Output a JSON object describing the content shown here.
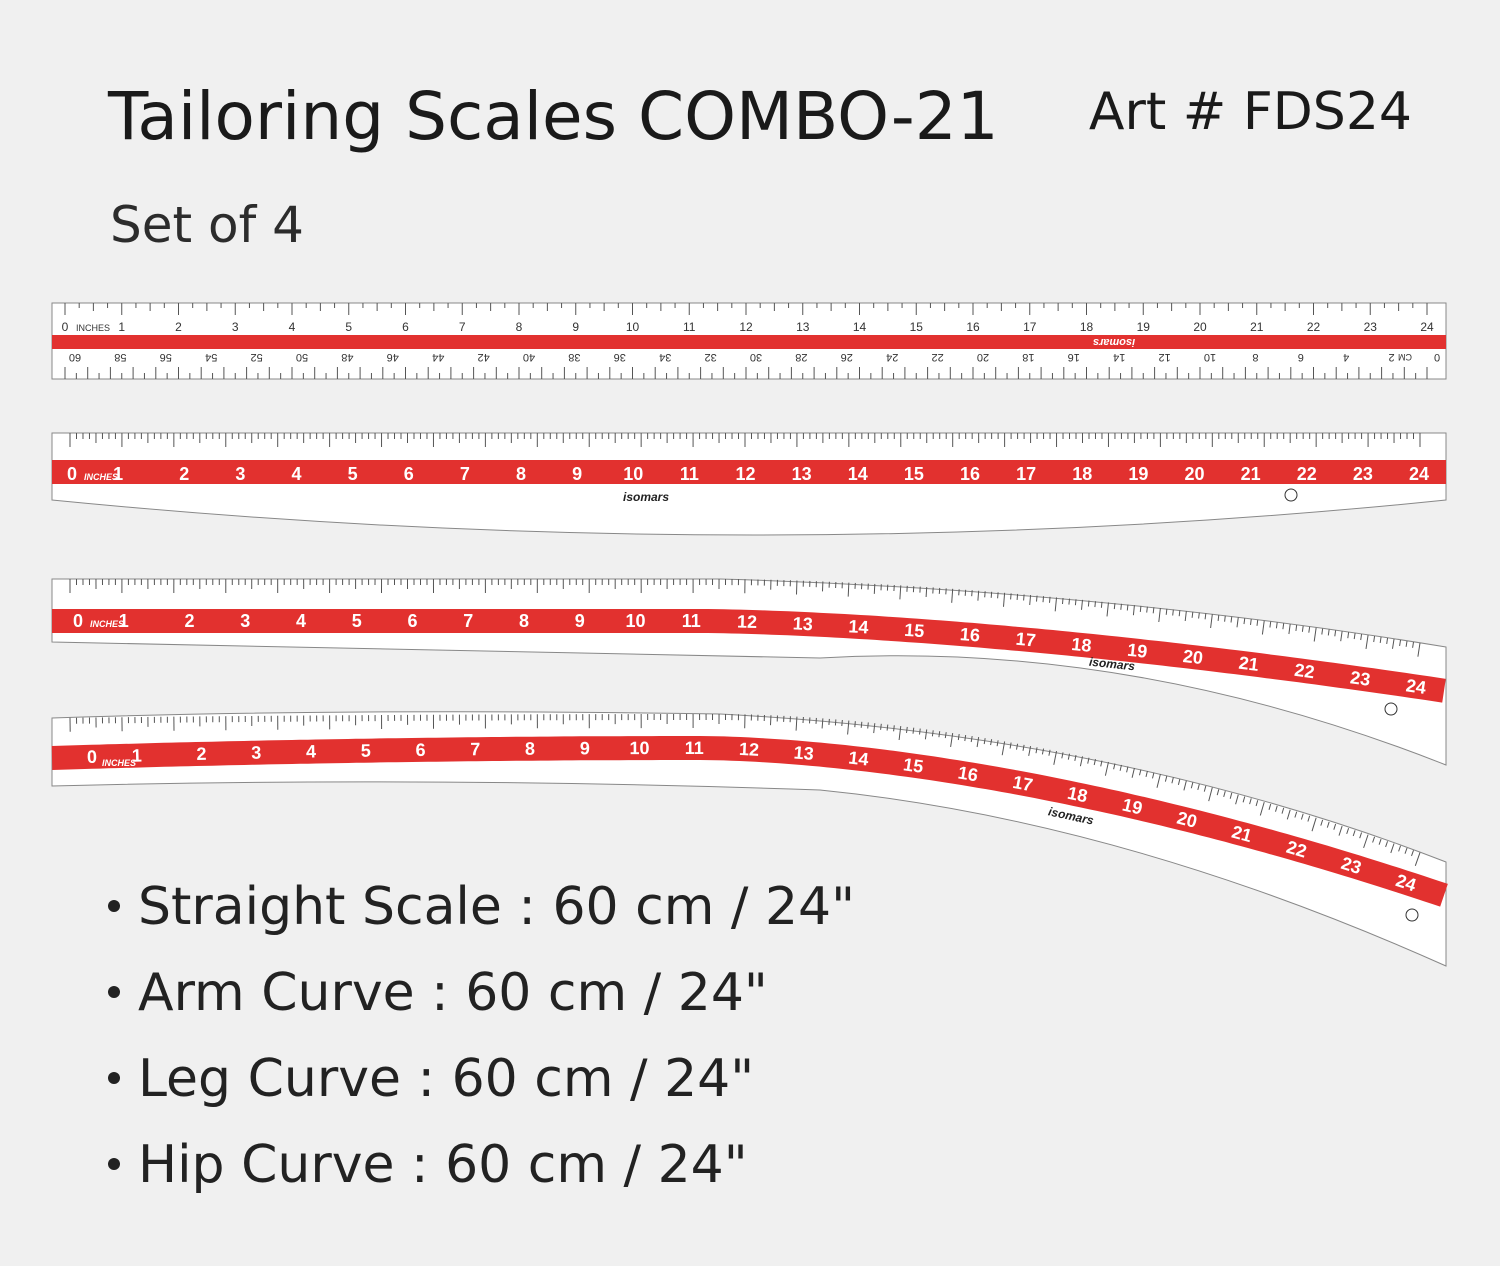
{
  "header": {
    "title": "Tailoring Scales COMBO-21",
    "art_number": "Art # FDS24",
    "subtitle": "Set of 4"
  },
  "colors": {
    "background": "#f0f0f0",
    "ruler_red": "#e2312f",
    "text": "#1a1a1a"
  },
  "rulers": {
    "brand": "isomars",
    "inch_label": "INCHES",
    "cm_label": "CM",
    "inch_numbers": [
      "0",
      "1",
      "2",
      "3",
      "4",
      "5",
      "6",
      "7",
      "8",
      "9",
      "10",
      "11",
      "12",
      "13",
      "14",
      "15",
      "16",
      "17",
      "18",
      "19",
      "20",
      "21",
      "22",
      "23",
      "24"
    ],
    "cm_numbers": [
      "60",
      "58",
      "56",
      "54",
      "52",
      "50",
      "48",
      "46",
      "44",
      "42",
      "40",
      "38",
      "36",
      "34",
      "32",
      "30",
      "28",
      "26",
      "24",
      "22",
      "20",
      "18",
      "16",
      "14",
      "12",
      "10",
      "8",
      "6",
      "4",
      "2",
      "0"
    ]
  },
  "specs": [
    "Straight Scale : 60 cm / 24\"",
    "Arm Curve : 60 cm / 24\"",
    "Leg Curve : 60 cm / 24\"",
    "Hip Curve : 60 cm / 24\""
  ]
}
